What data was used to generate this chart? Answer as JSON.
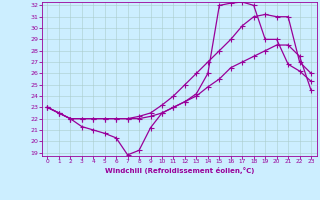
{
  "xlabel": "Windchill (Refroidissement éolien,°C)",
  "bg_color": "#cceeff",
  "grid_color": "#aacccc",
  "line_color": "#990099",
  "xlim": [
    -0.5,
    23.5
  ],
  "ylim": [
    18.7,
    32.3
  ],
  "xticks": [
    0,
    1,
    2,
    3,
    4,
    5,
    6,
    7,
    8,
    9,
    10,
    11,
    12,
    13,
    14,
    15,
    16,
    17,
    18,
    19,
    20,
    21,
    22,
    23
  ],
  "yticks": [
    19,
    20,
    21,
    22,
    23,
    24,
    25,
    26,
    27,
    28,
    29,
    30,
    31,
    32
  ],
  "curve1_x": [
    0,
    1,
    2,
    3,
    4,
    5,
    6,
    7,
    8,
    9,
    10,
    11,
    12,
    13,
    14,
    15,
    16,
    17,
    18,
    19,
    20,
    21,
    22,
    23
  ],
  "curve1_y": [
    23.0,
    22.5,
    22.0,
    21.3,
    21.0,
    20.7,
    20.3,
    18.8,
    19.2,
    21.2,
    22.5,
    23.0,
    23.5,
    24.2,
    26.0,
    32.0,
    32.2,
    32.3,
    32.0,
    29.0,
    29.0,
    26.8,
    26.2,
    25.3
  ],
  "curve2_x": [
    0,
    1,
    2,
    3,
    4,
    5,
    6,
    7,
    8,
    9,
    10,
    11,
    12,
    13,
    14,
    15,
    16,
    17,
    18,
    19,
    20,
    21,
    22,
    23
  ],
  "curve2_y": [
    23.0,
    22.5,
    22.0,
    22.0,
    22.0,
    22.0,
    22.0,
    22.0,
    22.0,
    22.2,
    22.5,
    23.0,
    23.5,
    24.0,
    24.8,
    25.5,
    26.5,
    27.0,
    27.5,
    28.0,
    28.5,
    28.5,
    27.5,
    24.5
  ],
  "curve3_x": [
    0,
    1,
    2,
    3,
    4,
    5,
    6,
    7,
    8,
    9,
    10,
    11,
    12,
    13,
    14,
    15,
    16,
    17,
    18,
    19,
    20,
    21,
    22,
    23
  ],
  "curve3_y": [
    23.0,
    22.5,
    22.0,
    22.0,
    22.0,
    22.0,
    22.0,
    22.0,
    22.2,
    22.5,
    23.2,
    24.0,
    25.0,
    26.0,
    27.0,
    28.0,
    29.0,
    30.2,
    31.0,
    31.2,
    31.0,
    31.0,
    27.0,
    26.0
  ]
}
